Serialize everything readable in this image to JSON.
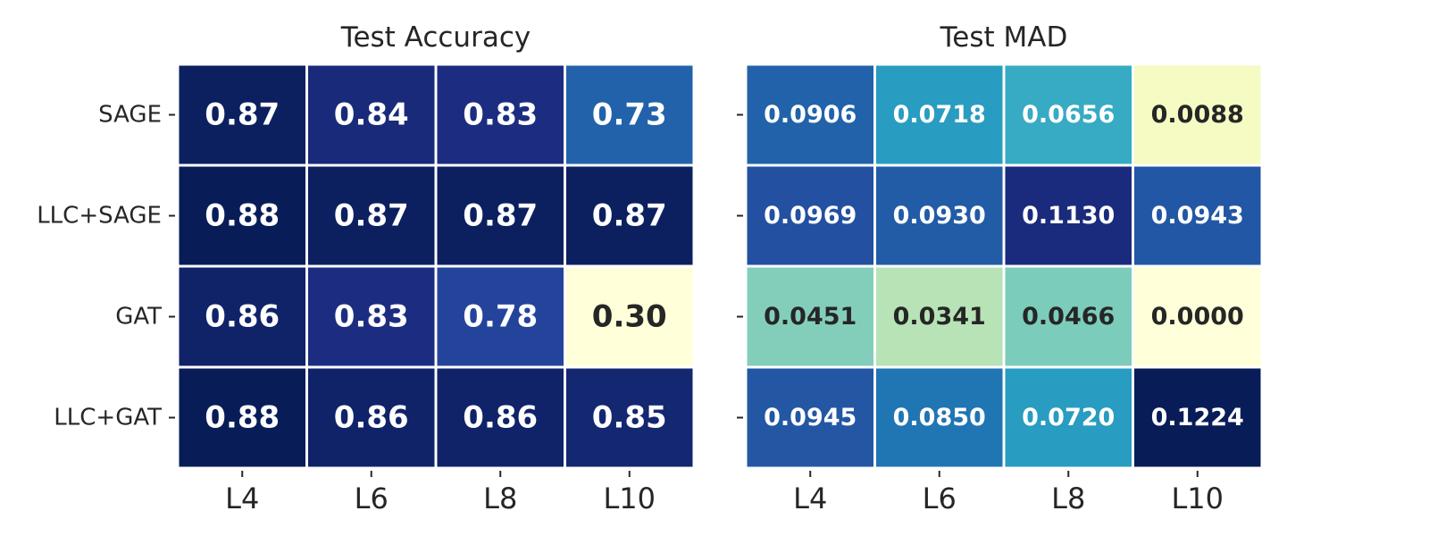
{
  "chart_data": [
    {
      "type": "heatmap",
      "title": "Test Accuracy",
      "rows": [
        "SAGE",
        "LLC+SAGE",
        "GAT",
        "LLC+GAT"
      ],
      "columns": [
        "L4",
        "L6",
        "L8",
        "L10"
      ],
      "values": [
        [
          0.87,
          0.84,
          0.83,
          0.73
        ],
        [
          0.88,
          0.87,
          0.87,
          0.87
        ],
        [
          0.86,
          0.83,
          0.78,
          0.3
        ],
        [
          0.88,
          0.86,
          0.86,
          0.85
        ]
      ],
      "labels": [
        [
          "0.87",
          "0.84",
          "0.83",
          "0.73"
        ],
        [
          "0.88",
          "0.87",
          "0.87",
          "0.87"
        ],
        [
          "0.86",
          "0.83",
          "0.78",
          "0.30"
        ],
        [
          "0.88",
          "0.86",
          "0.86",
          "0.85"
        ]
      ],
      "vmin": 0.3,
      "vmax": 0.88,
      "colormap": "YlGnBu",
      "show_row_labels": true,
      "grid": false
    },
    {
      "type": "heatmap",
      "title": "Test MAD",
      "rows": [
        "SAGE",
        "LLC+SAGE",
        "GAT",
        "LLC+GAT"
      ],
      "columns": [
        "L4",
        "L6",
        "L8",
        "L10"
      ],
      "values": [
        [
          0.0906,
          0.0718,
          0.0656,
          0.0088
        ],
        [
          0.0969,
          0.093,
          0.113,
          0.0943
        ],
        [
          0.0451,
          0.0341,
          0.0466,
          0.0
        ],
        [
          0.0945,
          0.085,
          0.072,
          0.1224
        ]
      ],
      "labels": [
        [
          "0.0906",
          "0.0718",
          "0.0656",
          "0.0088"
        ],
        [
          "0.0969",
          "0.0930",
          "0.1130",
          "0.0943"
        ],
        [
          "0.0451",
          "0.0341",
          "0.0466",
          "0.0000"
        ],
        [
          "0.0945",
          "0.0850",
          "0.0720",
          "0.1224"
        ]
      ],
      "vmin": 0.0,
      "vmax": 0.1224,
      "colormap": "YlGnBu",
      "show_row_labels": false,
      "grid": false
    }
  ],
  "colors": {
    "cmap_stops": [
      "#ffffd9",
      "#edf8b1",
      "#c7e9b4",
      "#7fcdbb",
      "#41b6c4",
      "#1d91c0",
      "#225ea8",
      "#253494",
      "#081d58"
    ],
    "dark_text": "#262626",
    "light_text": "#ffffff",
    "cell_gap": "#ffffff",
    "tick": "#262626"
  }
}
